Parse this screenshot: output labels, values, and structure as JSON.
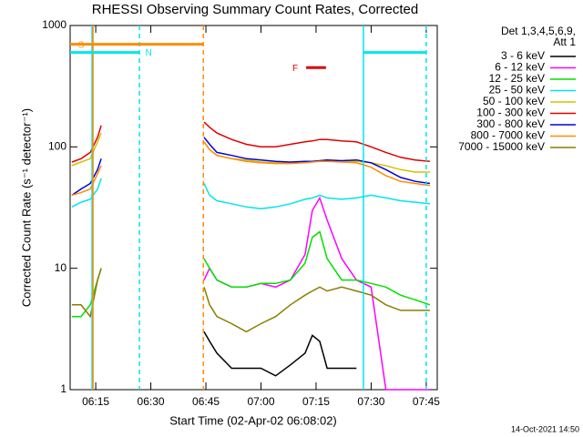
{
  "chart_data": {
    "type": "line",
    "title": "RHESSI Observing Summary Count Rates, Corrected",
    "xlabel": "Start Time (02-Apr-02 06:08:02)",
    "ylabel": "Corrected Count Rate (s⁻¹ detector⁻¹)",
    "footer": "14-Oct-2021 14:50",
    "legend_header": [
      "Det 1,3,4,5,6,9,",
      "Att 1"
    ],
    "legend": "top-right",
    "ylog": true,
    "xlim": [
      8.03,
      108
    ],
    "ylim": [
      1,
      1000
    ],
    "yticks": [
      1,
      10,
      100,
      1000
    ],
    "xticks": [
      {
        "value": 15,
        "label": "06:15"
      },
      {
        "value": 30,
        "label": "06:30"
      },
      {
        "value": 45,
        "label": "06:45"
      },
      {
        "value": 60,
        "label": "07:00"
      },
      {
        "value": 75,
        "label": "07:15"
      },
      {
        "value": 90,
        "label": "07:30"
      },
      {
        "value": 105,
        "label": "07:45"
      }
    ],
    "x": [
      8.5,
      11,
      13.5,
      15.5,
      16.5,
      30,
      44.5,
      46,
      48,
      52,
      56,
      60,
      64,
      68,
      72,
      74,
      76,
      78,
      82,
      86,
      90,
      94,
      98,
      102,
      106
    ],
    "series": [
      {
        "name": "3 - 6 keV",
        "color": "#000000",
        "values": [
          null,
          null,
          null,
          null,
          null,
          null,
          3,
          2.5,
          2,
          1.5,
          1.5,
          1.5,
          1.3,
          1.6,
          2,
          2.8,
          2.5,
          1.5,
          1.5,
          1.5,
          null,
          null,
          null,
          null,
          null
        ]
      },
      {
        "name": "6 - 12 keV",
        "color": "#ff00ff",
        "values": [
          null,
          null,
          null,
          null,
          null,
          null,
          8,
          10,
          8,
          7,
          7,
          7.5,
          7,
          8,
          13,
          30,
          38,
          25,
          12,
          8,
          7,
          1,
          1,
          1,
          1
        ]
      },
      {
        "name": "12 - 25 keV",
        "color": "#00e000",
        "values": [
          4,
          4,
          5,
          8,
          10,
          null,
          12,
          10,
          8,
          7,
          7,
          7.5,
          7.5,
          8,
          11,
          18,
          20,
          12,
          8,
          8,
          7.5,
          7,
          6,
          5.5,
          5
        ]
      },
      {
        "name": "25 - 50 keV",
        "color": "#00e5ee",
        "values": [
          32,
          35,
          37,
          45,
          55,
          null,
          50,
          40,
          36,
          34,
          32,
          31,
          32,
          34,
          37,
          38,
          40,
          38,
          37,
          38,
          40,
          38,
          36,
          35,
          34
        ]
      },
      {
        "name": "50 - 100 keV",
        "color": "#d4c400",
        "values": [
          70,
          75,
          80,
          110,
          130,
          null,
          110,
          95,
          85,
          80,
          78,
          75,
          74,
          74,
          75,
          76,
          76,
          76,
          76,
          76,
          74,
          70,
          65,
          62,
          62
        ]
      },
      {
        "name": "100 - 300 keV",
        "color": "#e00000",
        "values": [
          75,
          80,
          90,
          120,
          150,
          null,
          160,
          145,
          130,
          115,
          105,
          100,
          100,
          105,
          110,
          112,
          115,
          115,
          112,
          110,
          100,
          90,
          82,
          78,
          76
        ]
      },
      {
        "name": "300 - 800 keV",
        "color": "#0000e0",
        "values": [
          40,
          45,
          50,
          65,
          80,
          null,
          120,
          105,
          90,
          85,
          80,
          78,
          76,
          75,
          76,
          76,
          77,
          78,
          77,
          78,
          74,
          65,
          56,
          52,
          50
        ]
      },
      {
        "name": "800 - 7000 keV",
        "color": "#ff8c00",
        "values": [
          40,
          42,
          45,
          60,
          70,
          null,
          110,
          95,
          85,
          80,
          76,
          74,
          73,
          73,
          74,
          75,
          76,
          76,
          75,
          74,
          68,
          58,
          52,
          50,
          48
        ]
      },
      {
        "name": "7000 - 15000 keV",
        "color": "#8b7d00",
        "values": [
          5,
          5,
          4,
          8,
          10,
          null,
          7,
          5,
          4,
          3.5,
          3,
          3.5,
          4,
          5,
          6,
          6.5,
          7,
          6.5,
          7,
          6.5,
          6,
          5,
          4.5,
          4.5,
          4.5
        ]
      }
    ],
    "flags": [
      {
        "label": "S",
        "color": "#ff8c00",
        "start": 8.03,
        "end": 44.3,
        "level": 700
      },
      {
        "label": "N",
        "color": "#00e5ee",
        "start": 8.03,
        "end": 26.9,
        "level": 600
      },
      {
        "color": "#00e5ee",
        "start": 87.9,
        "end": 105,
        "level": 600
      },
      {
        "label": "F",
        "color": "#e00000",
        "start": 72.3,
        "end": 77.7,
        "level": 450
      }
    ],
    "markers": [
      {
        "x": 14.0,
        "color": "#00e5ee",
        "dashed": false
      },
      {
        "x": 14.25,
        "color": "#ff8c00",
        "dashed": false
      },
      {
        "x": 26.9,
        "color": "#00e5ee",
        "dashed": true
      },
      {
        "x": 44.3,
        "color": "#ff8c00",
        "dashed": true
      },
      {
        "x": 87.9,
        "color": "#00e5ee",
        "dashed": false
      },
      {
        "x": 105,
        "color": "#00e5ee",
        "dashed": true
      }
    ]
  }
}
